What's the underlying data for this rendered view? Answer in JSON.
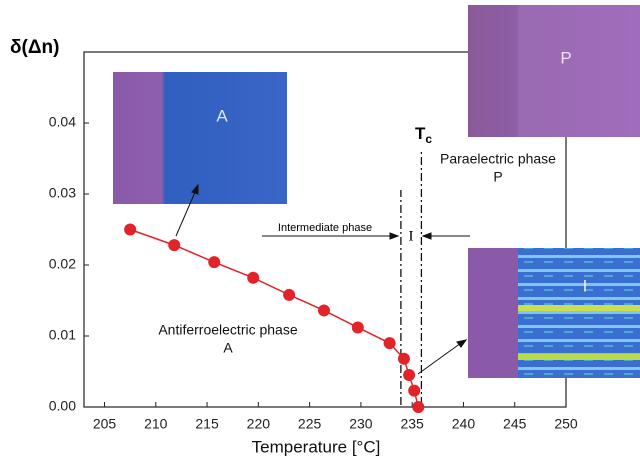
{
  "chart_data": {
    "type": "scatter",
    "x_label": "Temperature [°C]",
    "y_label": "δ(Δn)",
    "x": [
      207.5,
      211.8,
      215.7,
      219.5,
      223.0,
      226.4,
      229.7,
      232.8,
      234.2,
      234.7,
      235.2,
      235.6
    ],
    "values": [
      0.025,
      0.0228,
      0.0204,
      0.0182,
      0.0158,
      0.0136,
      0.0112,
      0.009,
      0.0068,
      0.0045,
      0.0023,
      0
    ],
    "color": "#e3232a",
    "xlim": [
      203,
      250
    ],
    "ylim": [
      0,
      0.05
    ],
    "xticks": [
      205,
      210,
      215,
      220,
      225,
      230,
      235,
      240,
      245,
      250
    ],
    "yticks": [
      {
        "value": 0,
        "label": "0.00"
      },
      0.01,
      0.02,
      0.03,
      0.04
    ],
    "phase_boundaries": [
      233.9,
      235.9
    ],
    "annotations": {
      "tc": {
        "main": "T",
        "sub": "c"
      },
      "paraelectric": "Paraelectric phase",
      "paraelectric_symbol": "P",
      "intermediate": "Intermediate phase",
      "intermediate_symbol": "I",
      "antiferroelectric": "Antiferroelectric phase",
      "antiferroelectric_symbol": "A"
    },
    "insets": {
      "a": "A",
      "p": "P",
      "i": "I"
    }
  }
}
